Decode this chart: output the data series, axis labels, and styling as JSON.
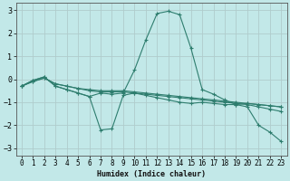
{
  "xlabel": "Humidex (Indice chaleur)",
  "background_color": "#c2e8e8",
  "grid_color": "#b0cccc",
  "line_color": "#2e7d6e",
  "xlim": [
    -0.5,
    23.5
  ],
  "ylim": [
    -3.3,
    3.3
  ],
  "xticks": [
    0,
    1,
    2,
    3,
    4,
    5,
    6,
    7,
    8,
    9,
    10,
    11,
    12,
    13,
    14,
    15,
    16,
    17,
    18,
    19,
    20,
    21,
    22,
    23
  ],
  "yticks": [
    -3,
    -2,
    -1,
    0,
    1,
    2,
    3
  ],
  "series": [
    {
      "x": [
        0,
        1,
        2,
        3,
        4,
        5,
        6,
        7,
        8,
        9,
        10,
        11,
        12,
        13,
        14,
        15,
        16,
        17,
        18,
        19,
        20,
        21,
        22,
        23
      ],
      "y": [
        -0.3,
        -0.1,
        0.05,
        -0.2,
        -0.3,
        -0.4,
        -0.45,
        -0.5,
        -0.5,
        -0.5,
        -0.55,
        -0.6,
        -0.65,
        -0.7,
        -0.75,
        -0.8,
        -0.85,
        -0.9,
        -0.95,
        -1.0,
        -1.05,
        -1.1,
        -1.15,
        -1.2
      ]
    },
    {
      "x": [
        0,
        1,
        2,
        3,
        4,
        5,
        6,
        7,
        8,
        9,
        10,
        11,
        12,
        13,
        14,
        15,
        16,
        17,
        18,
        19,
        20,
        21,
        22,
        23
      ],
      "y": [
        -0.3,
        -0.1,
        0.05,
        -0.2,
        -0.3,
        -0.4,
        -0.5,
        -0.55,
        -0.55,
        -0.55,
        -0.6,
        -0.65,
        -0.7,
        -0.75,
        -0.8,
        -0.85,
        -0.9,
        -0.95,
        -1.0,
        -1.05,
        -1.1,
        -1.2,
        -1.3,
        -1.4
      ]
    },
    {
      "x": [
        0,
        1,
        2,
        3,
        4,
        5,
        6,
        7,
        8,
        9,
        10,
        11,
        12,
        13,
        14,
        15,
        16,
        17,
        18,
        19,
        20,
        21,
        22,
        23
      ],
      "y": [
        -0.3,
        -0.05,
        0.1,
        -0.3,
        -0.45,
        -0.6,
        -0.75,
        -2.2,
        -2.15,
        -0.7,
        -0.6,
        -0.7,
        -0.8,
        -0.9,
        -1.0,
        -1.05,
        -1.0,
        -1.05,
        -1.1,
        -1.1,
        -1.05,
        -1.1,
        -1.15,
        -1.2
      ]
    },
    {
      "x": [
        0,
        1,
        2,
        3,
        4,
        5,
        6,
        7,
        8,
        9,
        10,
        11,
        12,
        13,
        14,
        15,
        16,
        17,
        18,
        19,
        20,
        21,
        22,
        23
      ],
      "y": [
        -0.3,
        -0.05,
        0.1,
        -0.3,
        -0.45,
        -0.6,
        -0.75,
        -0.6,
        -0.65,
        -0.6,
        0.4,
        1.7,
        2.85,
        2.95,
        2.8,
        1.35,
        -0.45,
        -0.65,
        -0.9,
        -1.1,
        -1.2,
        -2.0,
        -2.3,
        -2.7
      ]
    }
  ]
}
